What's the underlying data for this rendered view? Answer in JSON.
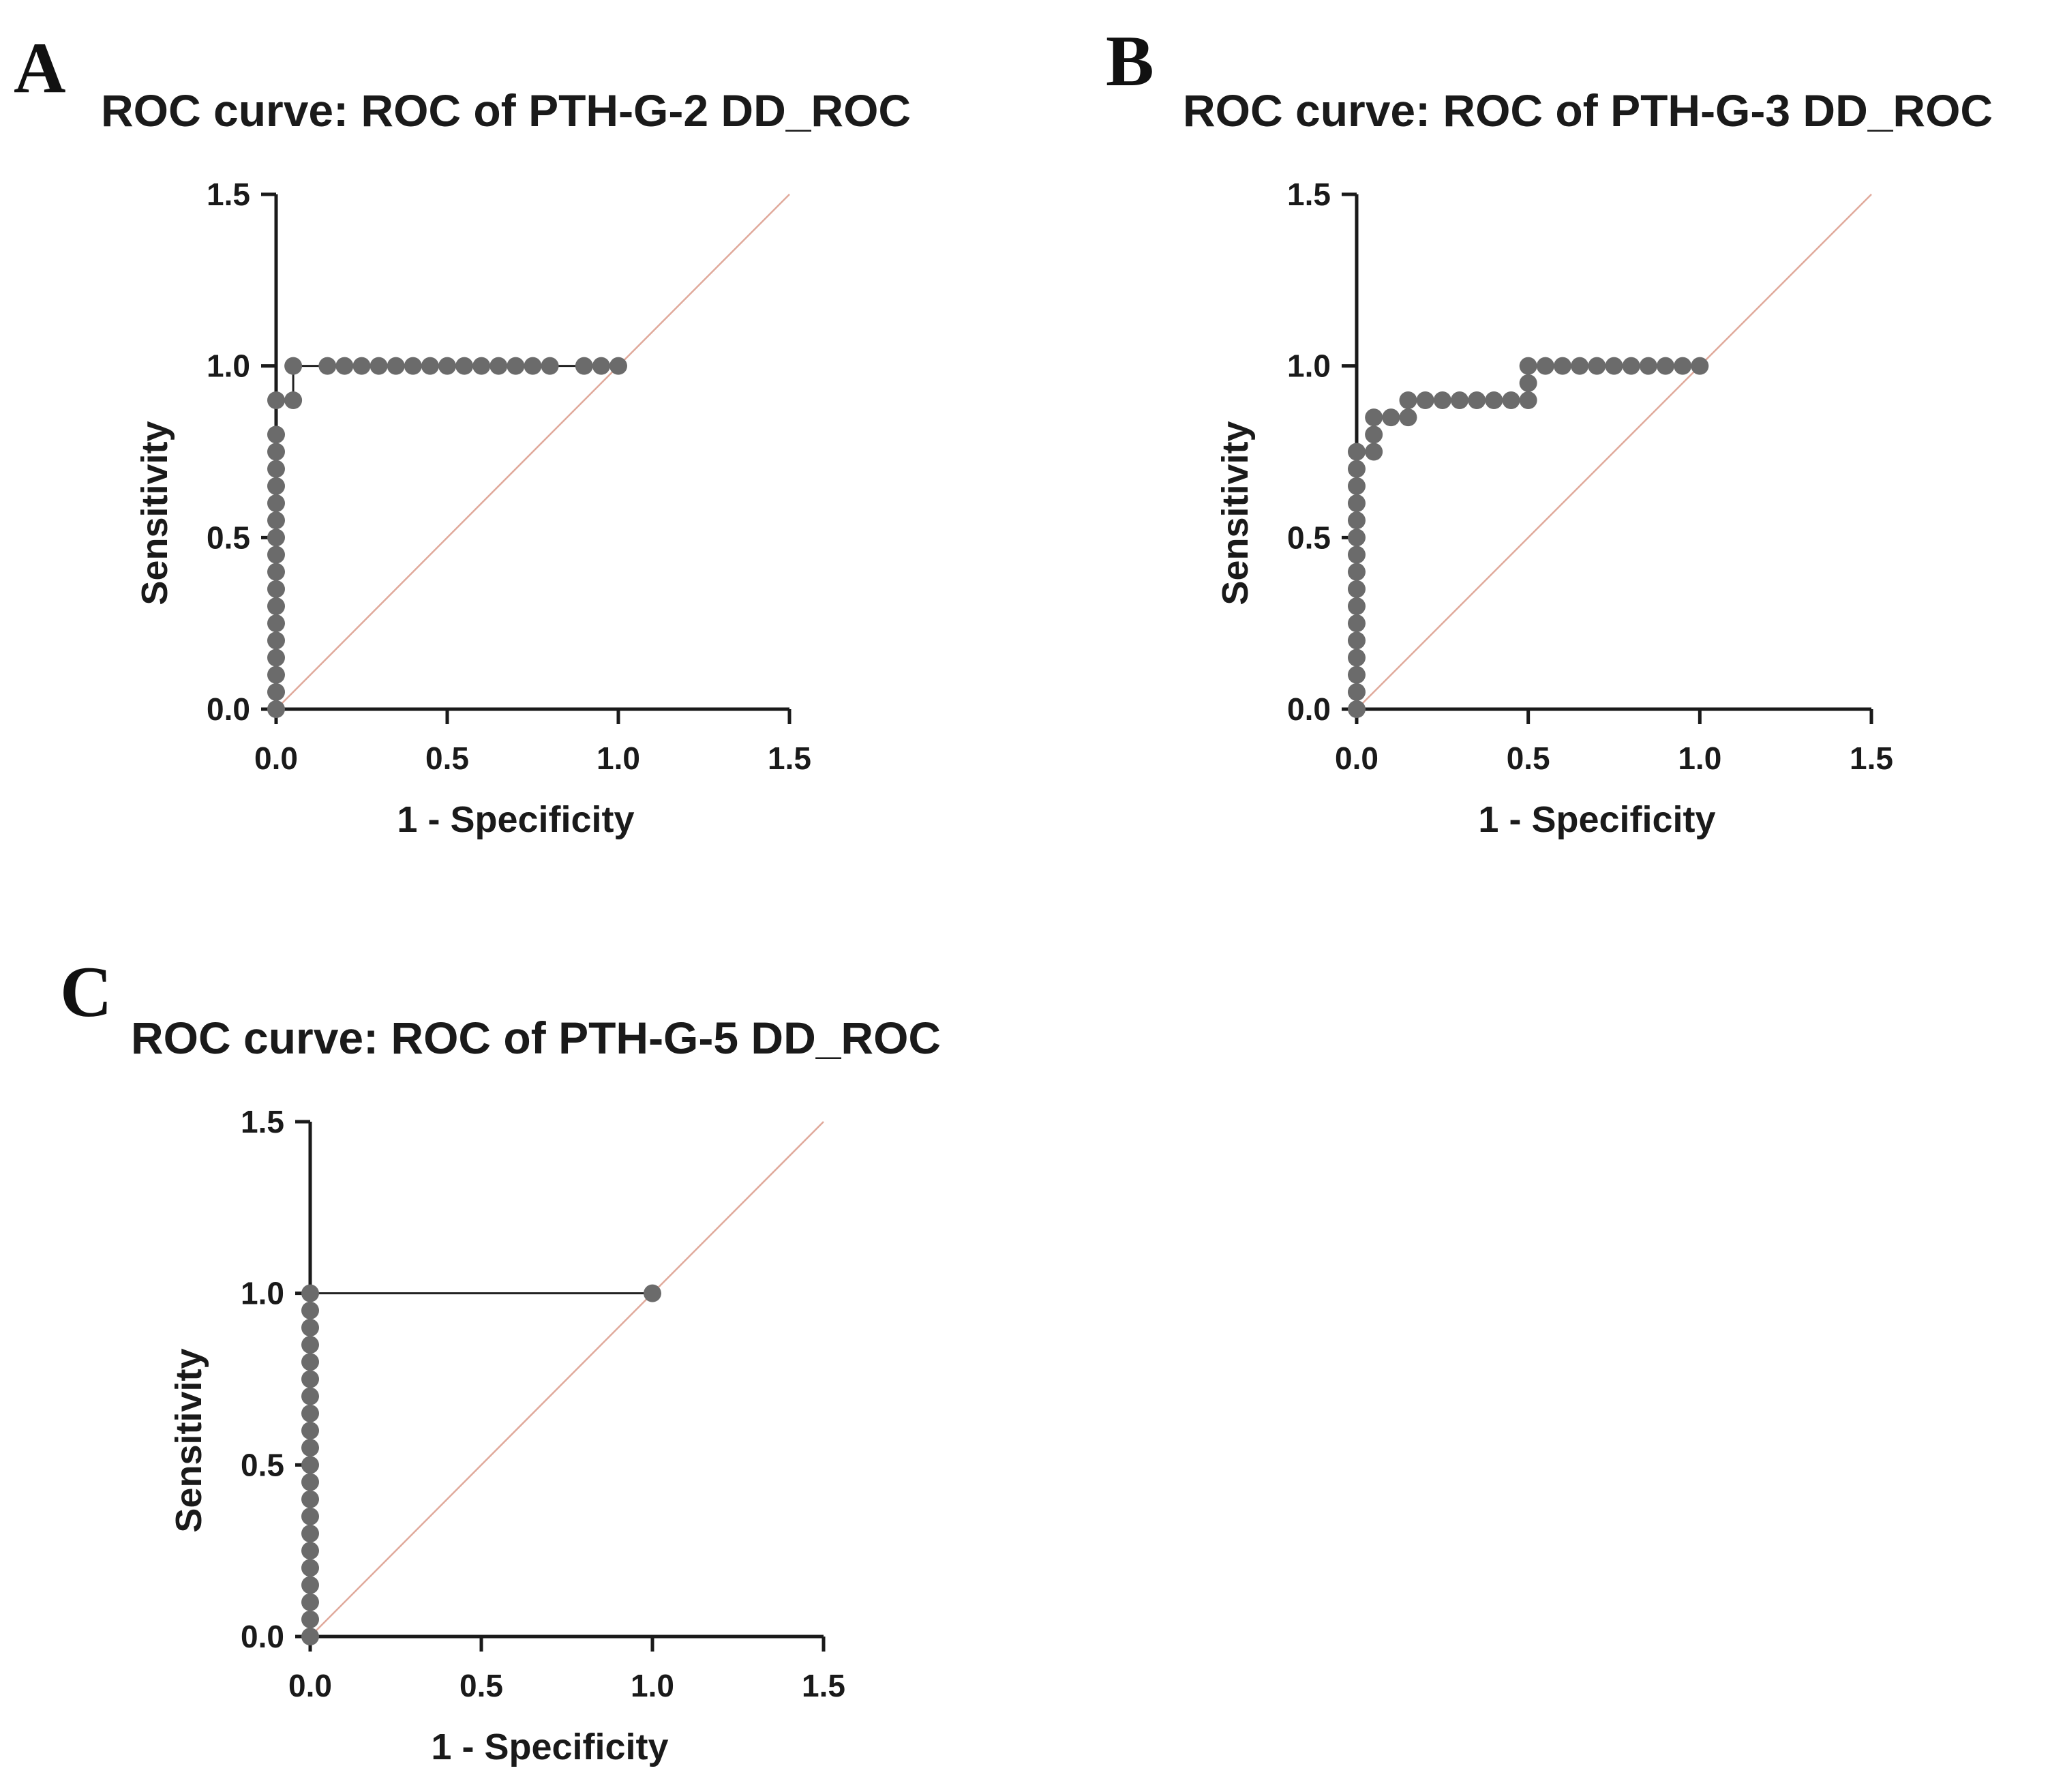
{
  "colors": {
    "curve": "#222222",
    "point": "#6b6b6b",
    "reference": "#e0a99b",
    "axis": "#1a1a1a"
  },
  "chart_data": [
    {
      "panel": "A",
      "type": "line",
      "title": "ROC curve: ROC of PTH-G-2 DD_ROC",
      "xlabel": "1 - Specificity",
      "ylabel": "Sensitivity",
      "xlim": [
        0,
        1.5
      ],
      "ylim": [
        0,
        1.5
      ],
      "xticks": [
        "0.0",
        "0.5",
        "1.0",
        "1.5"
      ],
      "yticks": [
        "0.0",
        "0.5",
        "1.0",
        "1.5"
      ],
      "reference_line": {
        "x": [
          0,
          1.5
        ],
        "y": [
          0,
          1.5
        ]
      },
      "series": [
        {
          "name": "ROC",
          "points": [
            [
              0,
              0
            ],
            [
              0,
              0.05
            ],
            [
              0,
              0.1
            ],
            [
              0,
              0.15
            ],
            [
              0,
              0.2
            ],
            [
              0,
              0.25
            ],
            [
              0,
              0.3
            ],
            [
              0,
              0.35
            ],
            [
              0,
              0.4
            ],
            [
              0,
              0.45
            ],
            [
              0,
              0.5
            ],
            [
              0,
              0.55
            ],
            [
              0,
              0.6
            ],
            [
              0,
              0.65
            ],
            [
              0,
              0.7
            ],
            [
              0,
              0.75
            ],
            [
              0,
              0.8
            ],
            [
              0,
              0.9
            ],
            [
              0.05,
              0.9
            ],
            [
              0.05,
              1.0
            ],
            [
              0.15,
              1.0
            ],
            [
              0.2,
              1.0
            ],
            [
              0.25,
              1.0
            ],
            [
              0.3,
              1.0
            ],
            [
              0.35,
              1.0
            ],
            [
              0.4,
              1.0
            ],
            [
              0.45,
              1.0
            ],
            [
              0.5,
              1.0
            ],
            [
              0.55,
              1.0
            ],
            [
              0.6,
              1.0
            ],
            [
              0.65,
              1.0
            ],
            [
              0.7,
              1.0
            ],
            [
              0.75,
              1.0
            ],
            [
              0.8,
              1.0
            ],
            [
              0.9,
              1.0
            ],
            [
              0.95,
              1.0
            ],
            [
              1.0,
              1.0
            ]
          ]
        }
      ]
    },
    {
      "panel": "B",
      "type": "line",
      "title": "ROC curve: ROC of PTH-G-3 DD_ROC",
      "xlabel": "1 - Specificity",
      "ylabel": "Sensitivity",
      "xlim": [
        0,
        1.5
      ],
      "ylim": [
        0,
        1.5
      ],
      "xticks": [
        "0.0",
        "0.5",
        "1.0",
        "1.5"
      ],
      "yticks": [
        "0.0",
        "0.5",
        "1.0",
        "1.5"
      ],
      "reference_line": {
        "x": [
          0,
          1.5
        ],
        "y": [
          0,
          1.5
        ]
      },
      "series": [
        {
          "name": "ROC",
          "points": [
            [
              0,
              0
            ],
            [
              0,
              0.05
            ],
            [
              0,
              0.1
            ],
            [
              0,
              0.15
            ],
            [
              0,
              0.2
            ],
            [
              0,
              0.25
            ],
            [
              0,
              0.3
            ],
            [
              0,
              0.35
            ],
            [
              0,
              0.4
            ],
            [
              0,
              0.45
            ],
            [
              0,
              0.5
            ],
            [
              0,
              0.55
            ],
            [
              0,
              0.6
            ],
            [
              0,
              0.65
            ],
            [
              0,
              0.7
            ],
            [
              0,
              0.75
            ],
            [
              0.05,
              0.75
            ],
            [
              0.05,
              0.8
            ],
            [
              0.05,
              0.85
            ],
            [
              0.1,
              0.85
            ],
            [
              0.15,
              0.85
            ],
            [
              0.15,
              0.9
            ],
            [
              0.2,
              0.9
            ],
            [
              0.25,
              0.9
            ],
            [
              0.3,
              0.9
            ],
            [
              0.35,
              0.9
            ],
            [
              0.4,
              0.9
            ],
            [
              0.45,
              0.9
            ],
            [
              0.5,
              0.9
            ],
            [
              0.5,
              0.95
            ],
            [
              0.5,
              1.0
            ],
            [
              0.55,
              1.0
            ],
            [
              0.6,
              1.0
            ],
            [
              0.65,
              1.0
            ],
            [
              0.7,
              1.0
            ],
            [
              0.75,
              1.0
            ],
            [
              0.8,
              1.0
            ],
            [
              0.85,
              1.0
            ],
            [
              0.9,
              1.0
            ],
            [
              0.95,
              1.0
            ],
            [
              1.0,
              1.0
            ]
          ]
        }
      ]
    },
    {
      "panel": "C",
      "type": "line",
      "title": "ROC curve: ROC of PTH-G-5 DD_ROC",
      "xlabel": "1 - Specificity",
      "ylabel": "Sensitivity",
      "xlim": [
        0,
        1.5
      ],
      "ylim": [
        0,
        1.5
      ],
      "xticks": [
        "0.0",
        "0.5",
        "1.0",
        "1.5"
      ],
      "yticks": [
        "0.0",
        "0.5",
        "1.0",
        "1.5"
      ],
      "reference_line": {
        "x": [
          0,
          1.5
        ],
        "y": [
          0,
          1.5
        ]
      },
      "series": [
        {
          "name": "ROC",
          "points": [
            [
              0,
              0
            ],
            [
              0,
              0.05
            ],
            [
              0,
              0.1
            ],
            [
              0,
              0.15
            ],
            [
              0,
              0.2
            ],
            [
              0,
              0.25
            ],
            [
              0,
              0.3
            ],
            [
              0,
              0.35
            ],
            [
              0,
              0.4
            ],
            [
              0,
              0.45
            ],
            [
              0,
              0.5
            ],
            [
              0,
              0.55
            ],
            [
              0,
              0.6
            ],
            [
              0,
              0.65
            ],
            [
              0,
              0.7
            ],
            [
              0,
              0.75
            ],
            [
              0,
              0.8
            ],
            [
              0,
              0.85
            ],
            [
              0,
              0.9
            ],
            [
              0,
              0.95
            ],
            [
              0,
              1.0
            ],
            [
              1.0,
              1.0
            ]
          ]
        }
      ]
    }
  ]
}
